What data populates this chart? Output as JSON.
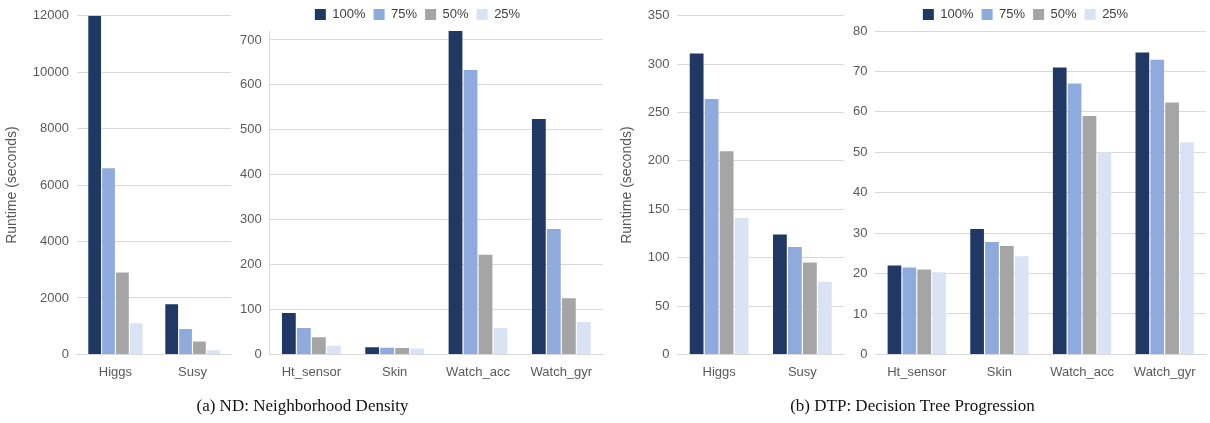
{
  "chart_data": [
    {
      "type": "bar",
      "ylabel": "Runtime (seconds)",
      "categories": [
        "Higgs",
        "Susy"
      ],
      "series": [
        {
          "color": "#203864",
          "values": [
            12000,
            1780
          ]
        },
        {
          "color": "#8faadc",
          "values": [
            6600,
            900
          ]
        },
        {
          "color": "#a5a5a5",
          "values": [
            2900,
            460
          ]
        },
        {
          "color": "#dae3f3",
          "values": [
            1100,
            150
          ]
        }
      ],
      "ylim": [
        0,
        12000
      ],
      "yticks": [
        0,
        2000,
        4000,
        6000,
        8000,
        10000,
        12000
      ],
      "grid": "y",
      "legend": false,
      "annotations": [
        "(a) ND: Neighborhood Density"
      ]
    },
    {
      "type": "bar",
      "categories": [
        "Ht_sensor",
        "Skin",
        "Watch_acc",
        "Watch_gyr"
      ],
      "series": [
        {
          "name": "100%",
          "color": "#203864",
          "values": [
            92,
            16,
            720,
            524
          ]
        },
        {
          "name": "75%",
          "color": "#8faadc",
          "values": [
            59,
            15,
            633,
            279
          ]
        },
        {
          "name": "50%",
          "color": "#a5a5a5",
          "values": [
            38,
            14,
            222,
            125
          ]
        },
        {
          "name": "25%",
          "color": "#dae3f3",
          "values": [
            19,
            13,
            59,
            72
          ]
        }
      ],
      "ylim": [
        0,
        720
      ],
      "yticks": [
        0,
        100,
        200,
        300,
        400,
        500,
        600,
        700
      ],
      "grid": "y",
      "legend": "top"
    },
    {
      "type": "bar",
      "ylabel": "Runtime (seconds)",
      "categories": [
        "Higgs",
        "Susy"
      ],
      "series": [
        {
          "color": "#203864",
          "values": [
            311,
            124
          ]
        },
        {
          "color": "#8faadc",
          "values": [
            264,
            111
          ]
        },
        {
          "color": "#a5a5a5",
          "values": [
            210,
            95
          ]
        },
        {
          "color": "#dae3f3",
          "values": [
            141,
            75
          ]
        }
      ],
      "ylim": [
        0,
        350
      ],
      "yticks": [
        0,
        50,
        100,
        150,
        200,
        250,
        300,
        350
      ],
      "grid": "y",
      "legend": false,
      "annotations": [
        "(b) DTP: Decision Tree Progression"
      ]
    },
    {
      "type": "bar",
      "categories": [
        "Ht_sensor",
        "Skin",
        "Watch_acc",
        "Watch_gyr"
      ],
      "series": [
        {
          "name": "100%",
          "color": "#203864",
          "values": [
            22,
            31,
            71,
            74.7
          ]
        },
        {
          "name": "75%",
          "color": "#8faadc",
          "values": [
            21.5,
            27.8,
            67,
            72.9
          ]
        },
        {
          "name": "50%",
          "color": "#a5a5a5",
          "values": [
            21,
            26.8,
            59,
            62.3
          ]
        },
        {
          "name": "25%",
          "color": "#dae3f3",
          "values": [
            20.3,
            24.3,
            50,
            52.5
          ]
        }
      ],
      "ylim": [
        0,
        80
      ],
      "yticks": [
        0,
        10,
        20,
        30,
        40,
        50,
        60,
        70,
        80
      ],
      "grid": "y",
      "legend": "top"
    }
  ]
}
